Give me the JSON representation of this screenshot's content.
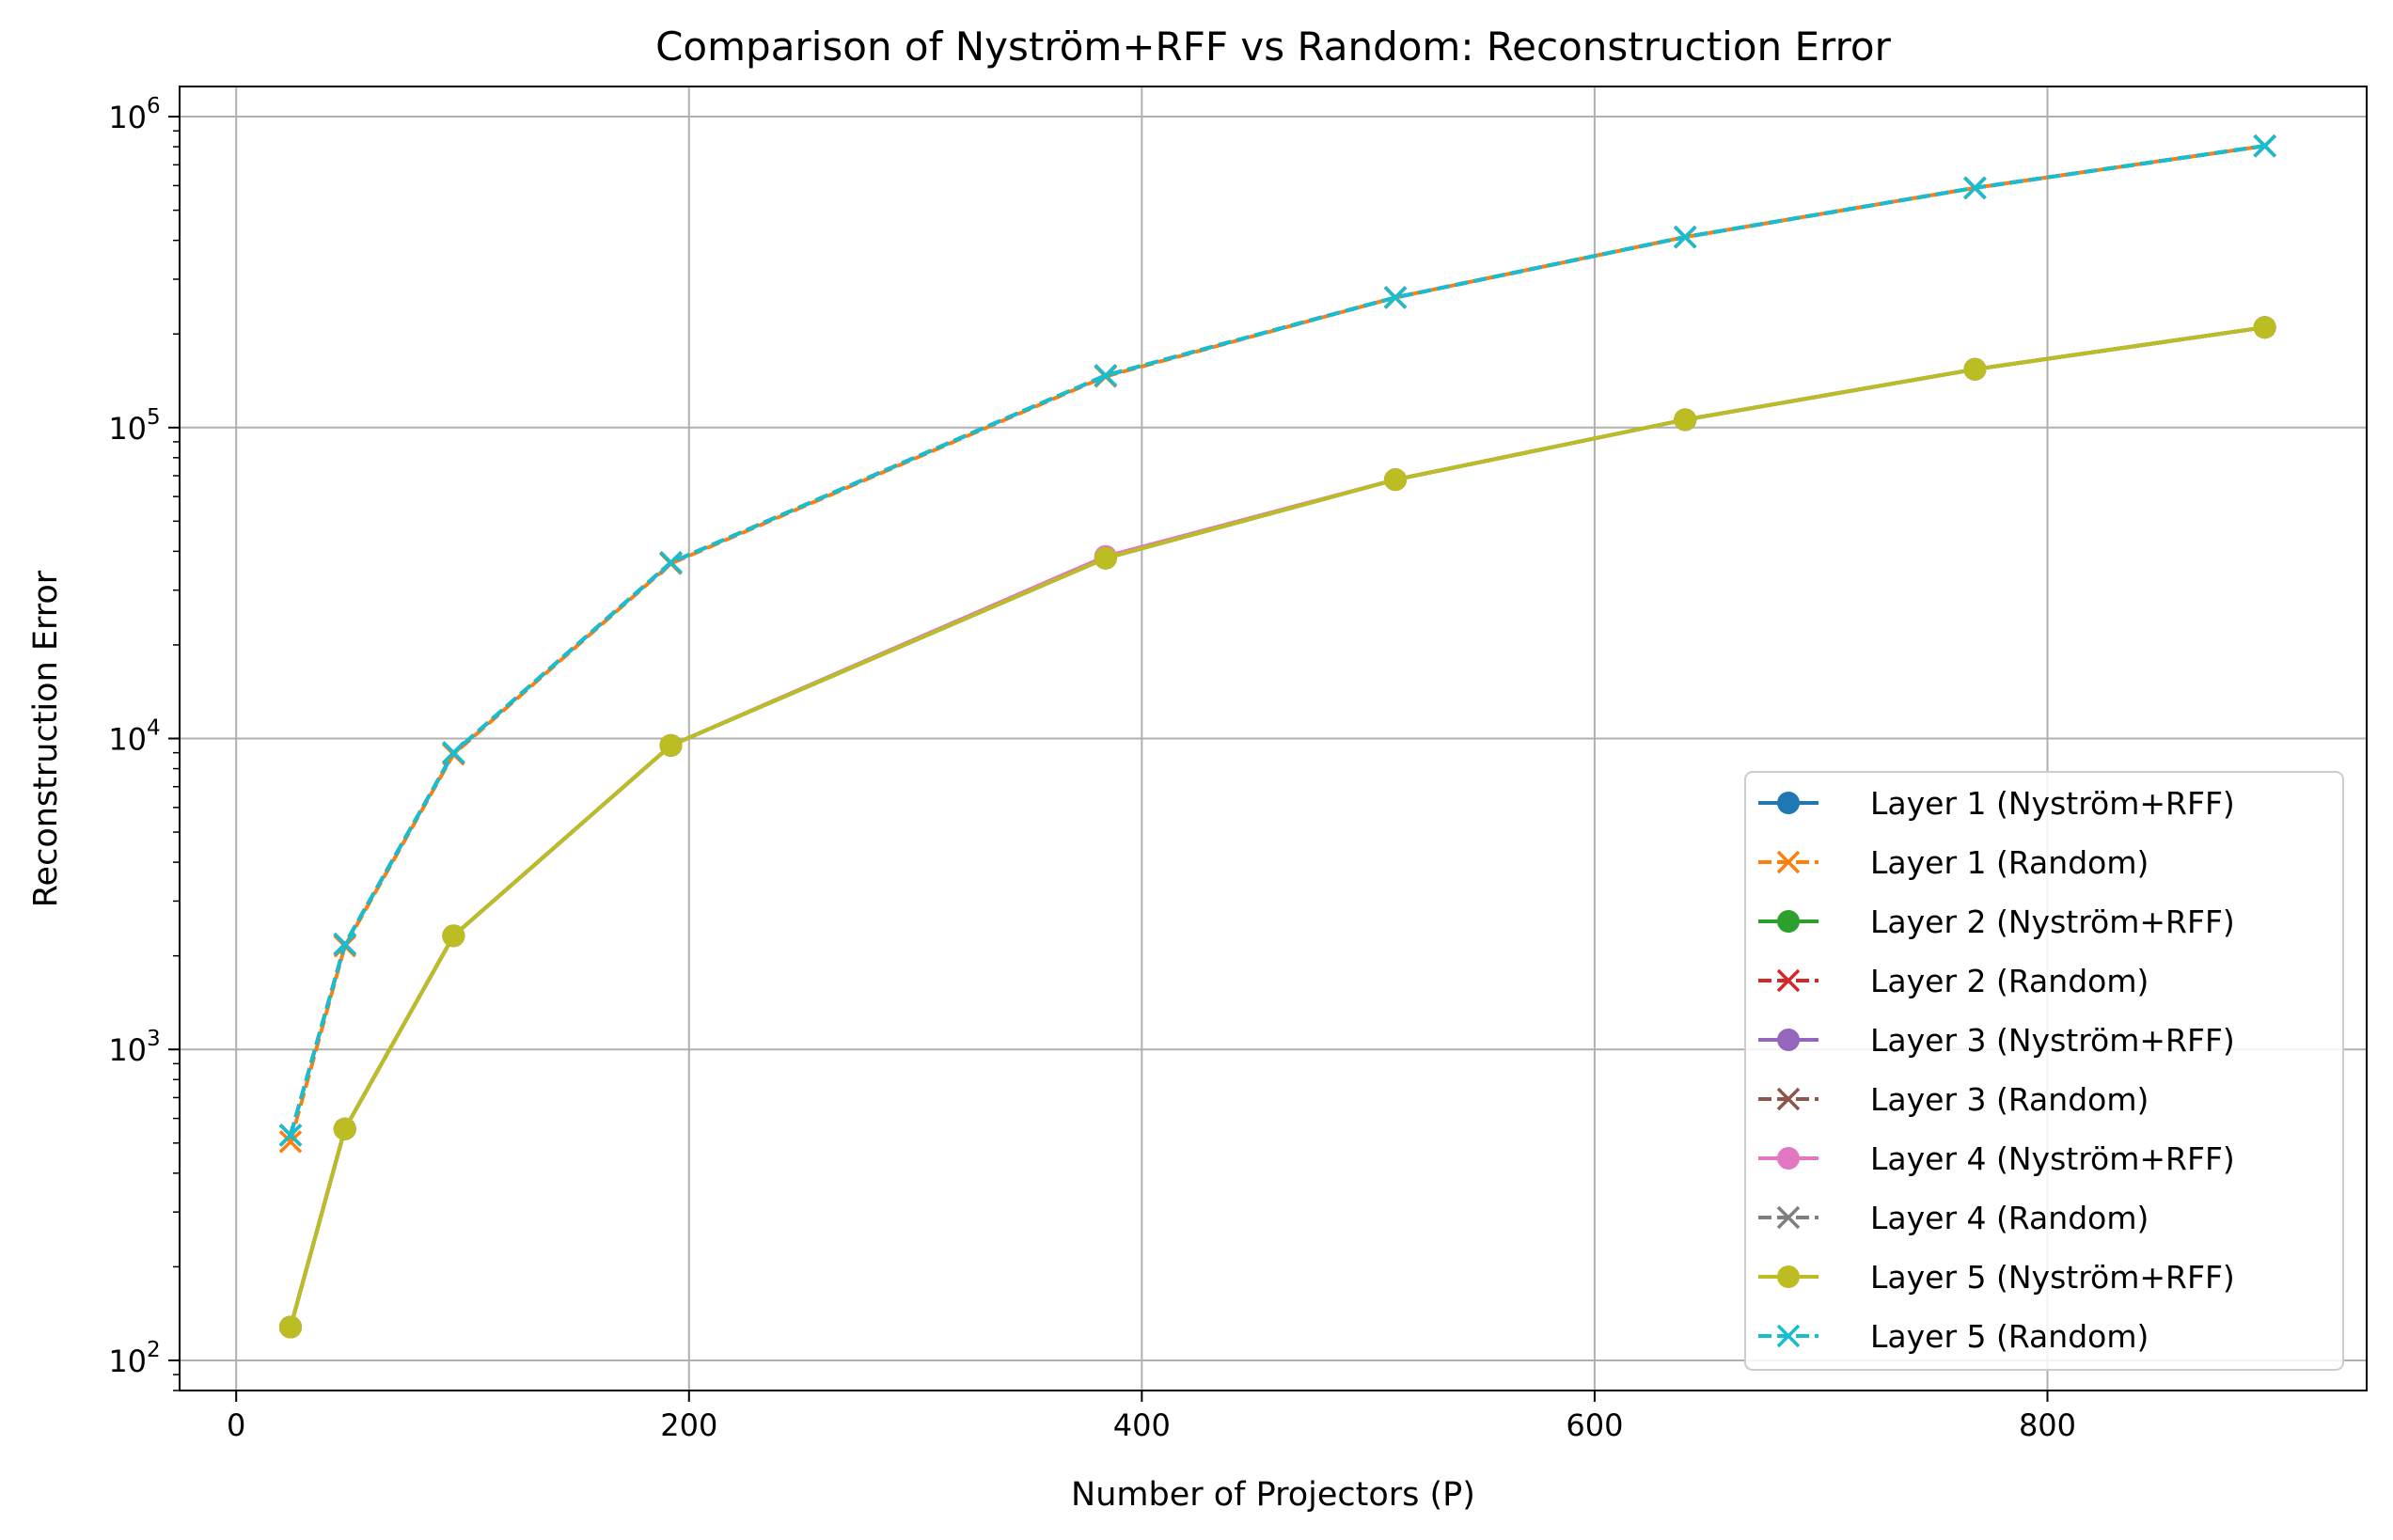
{
  "chart_data": {
    "type": "line",
    "title": "Comparison of Nyström+RFF vs Random: Reconstruction Error",
    "xlabel": "Number of Projectors (P)",
    "ylabel": "Reconstruction Error",
    "xlim": [
      -25,
      941
    ],
    "ylim": [
      80,
      1250000
    ],
    "yscale": "log",
    "grid": true,
    "legend_position": "lower right",
    "x_ticks": [
      0,
      200,
      400,
      600,
      800
    ],
    "y_ticks": [
      {
        "value": 100,
        "base": "10",
        "exp": "2"
      },
      {
        "value": 1000,
        "base": "10",
        "exp": "3"
      },
      {
        "value": 10000,
        "base": "10",
        "exp": "4"
      },
      {
        "value": 100000,
        "base": "10",
        "exp": "5"
      },
      {
        "value": 1000000,
        "base": "10",
        "exp": "6"
      }
    ],
    "x": [
      24,
      48,
      96,
      192,
      384,
      512,
      640,
      768,
      896
    ],
    "series": [
      {
        "name": "Layer 1 (Nyström+RFF)",
        "color": "#1f77b4",
        "style": "solid",
        "marker": "circle",
        "values": [
          128,
          555,
          2320,
          9500,
          38000,
          68000,
          106000,
          154000,
          210000
        ]
      },
      {
        "name": "Layer 1 (Random)",
        "color": "#ff7f0e",
        "style": "dashed",
        "marker": "x",
        "values": [
          505,
          2150,
          8900,
          36500,
          146000,
          262000,
          410000,
          590000,
          805000
        ]
      },
      {
        "name": "Layer 2 (Nyström+RFF)",
        "color": "#2ca02c",
        "style": "solid",
        "marker": "circle",
        "values": [
          128,
          555,
          2320,
          9500,
          38000,
          68000,
          106000,
          154000,
          210000
        ]
      },
      {
        "name": "Layer 2 (Random)",
        "color": "#d62728",
        "style": "dashed",
        "marker": "x",
        "values": [
          530,
          2180,
          9000,
          36800,
          147000,
          262000,
          410000,
          590000,
          805000
        ]
      },
      {
        "name": "Layer 3 (Nyström+RFF)",
        "color": "#9467bd",
        "style": "solid",
        "marker": "circle",
        "values": [
          128,
          555,
          2320,
          9500,
          38500,
          68000,
          106000,
          154000,
          210000
        ]
      },
      {
        "name": "Layer 3 (Random)",
        "color": "#8c564b",
        "style": "dashed",
        "marker": "x",
        "values": [
          530,
          2180,
          9000,
          36800,
          147000,
          262000,
          410000,
          590000,
          805000
        ]
      },
      {
        "name": "Layer 4 (Nyström+RFF)",
        "color": "#e377c2",
        "style": "solid",
        "marker": "circle",
        "values": [
          128,
          555,
          2320,
          9500,
          38500,
          68000,
          106000,
          154000,
          210000
        ]
      },
      {
        "name": "Layer 4 (Random)",
        "color": "#7f7f7f",
        "style": "dashed",
        "marker": "x",
        "values": [
          530,
          2180,
          9000,
          36800,
          147000,
          262000,
          410000,
          590000,
          805000
        ]
      },
      {
        "name": "Layer 5 (Nyström+RFF)",
        "color": "#bcbd22",
        "style": "solid",
        "marker": "circle",
        "values": [
          128,
          555,
          2320,
          9500,
          38000,
          68000,
          106000,
          154000,
          210000
        ]
      },
      {
        "name": "Layer 5 (Random)",
        "color": "#17becf",
        "style": "dashed",
        "marker": "x",
        "values": [
          530,
          2180,
          9000,
          36800,
          147000,
          262000,
          410000,
          590000,
          805000
        ]
      }
    ]
  }
}
